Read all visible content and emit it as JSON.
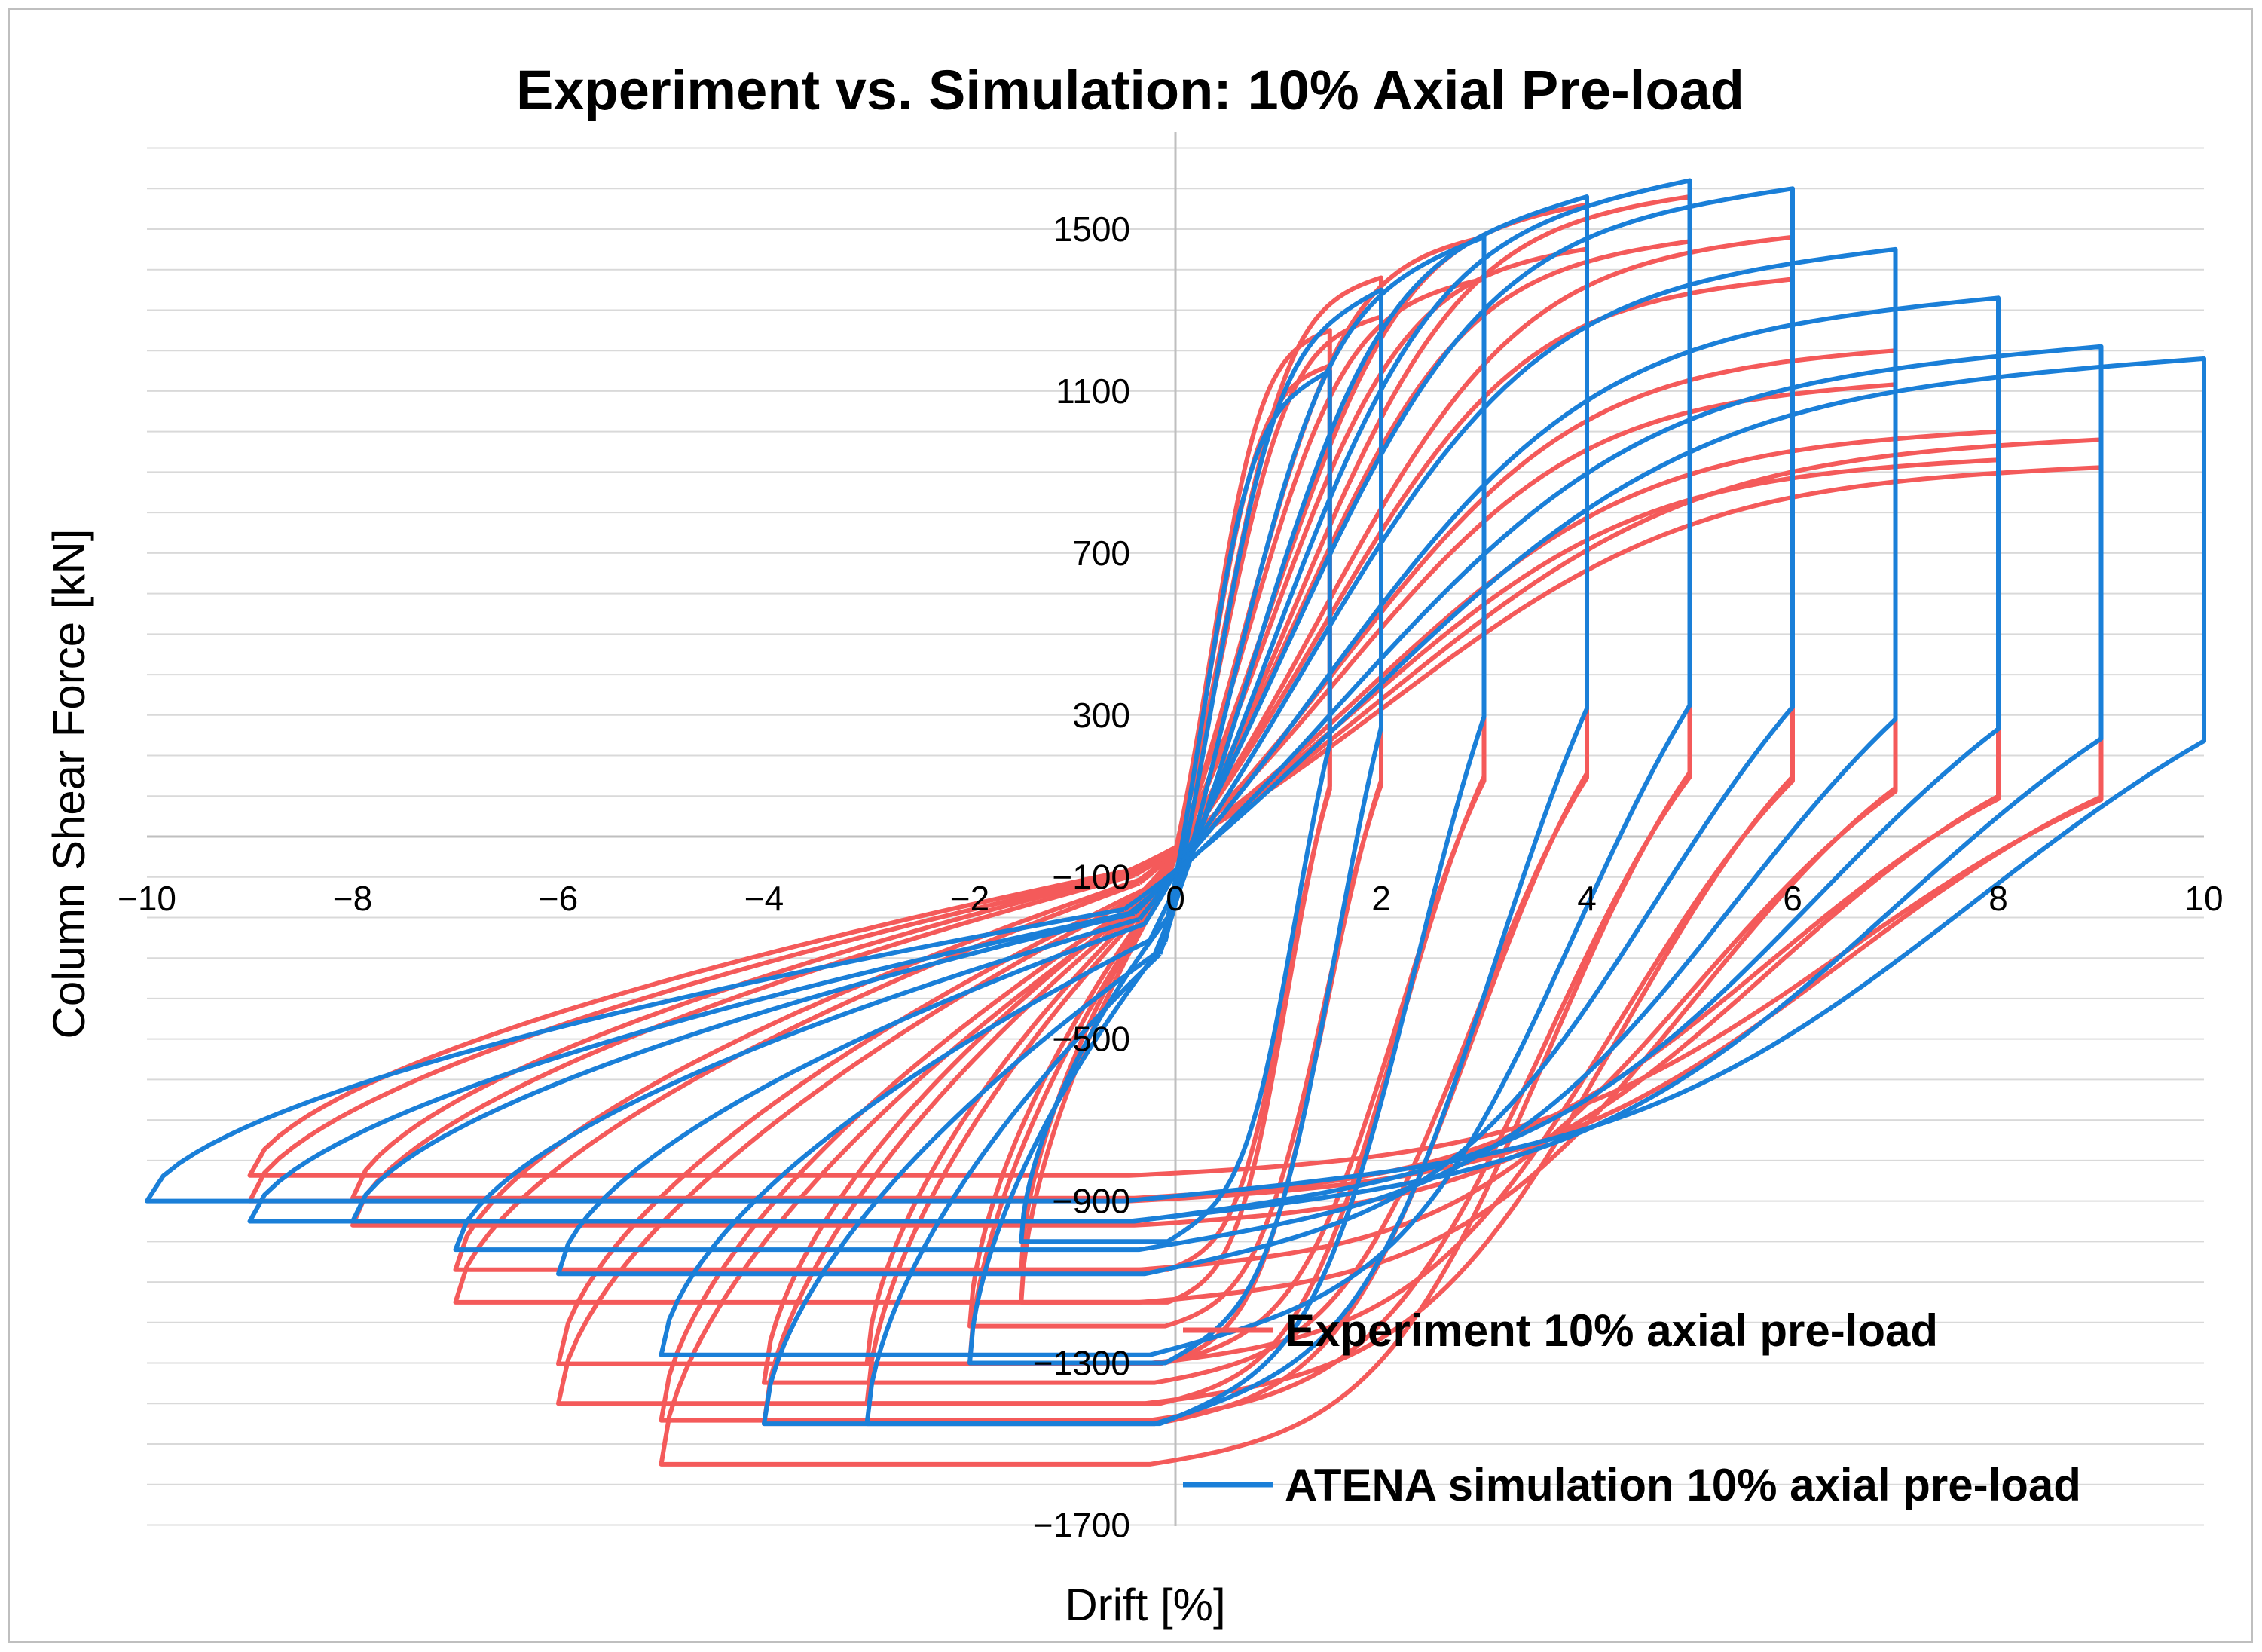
{
  "chart_data": {
    "type": "line",
    "title": "Experiment vs. Simulation: 10% Axial Pre-load",
    "xlabel": "Drift [%]",
    "ylabel": "Column Shear Force [kN]",
    "xlim": [
      -10,
      10
    ],
    "ylim": [
      -1700,
      1700
    ],
    "x_ticks": [
      -10,
      -8,
      -6,
      -4,
      -2,
      0,
      2,
      4,
      6,
      8,
      10
    ],
    "y_ticks": [
      1500,
      1100,
      700,
      300,
      -100,
      -500,
      -900,
      -1300,
      -1700
    ],
    "grid": true,
    "legend_position": "bottom-right",
    "series": [
      {
        "name": "Experiment 10% axial pre-load",
        "color": "#f45a5a",
        "cycles": [
          {
            "drift": 1.5,
            "pos_peak": 1250,
            "neg_peak": -1150
          },
          {
            "drift": 2,
            "pos_peak": 1380,
            "neg_peak": -1300
          },
          {
            "drift": 3,
            "pos_peak": 1480,
            "neg_peak": -1400
          },
          {
            "drift": 4,
            "pos_peak": 1560,
            "neg_peak": -1450
          },
          {
            "drift": 5,
            "pos_peak": 1580,
            "neg_peak": -1550
          },
          {
            "drift": 6,
            "pos_peak": 1480,
            "neg_peak": -1400
          },
          {
            "drift": 7,
            "pos_peak": 1200,
            "neg_peak": -1150
          },
          {
            "drift": 8,
            "pos_peak": 1000,
            "neg_peak": -960
          },
          {
            "drift": 9,
            "pos_peak": 980,
            "neg_peak": -900
          }
        ]
      },
      {
        "name": "ATENA simulation 10% axial pre-load",
        "color": "#1a7fd8",
        "cycles": [
          {
            "drift": 1.5,
            "pos_peak": 1150,
            "neg_peak": -1000
          },
          {
            "drift": 2,
            "pos_peak": 1350,
            "neg_peak": -1300
          },
          {
            "drift": 3,
            "pos_peak": 1480,
            "neg_peak": -1450
          },
          {
            "drift": 4,
            "pos_peak": 1580,
            "neg_peak": -1450
          },
          {
            "drift": 5,
            "pos_peak": 1620,
            "neg_peak": -1280
          },
          {
            "drift": 6,
            "pos_peak": 1600,
            "neg_peak": -1080
          },
          {
            "drift": 7,
            "pos_peak": 1450,
            "neg_peak": -1020
          },
          {
            "drift": 8,
            "pos_peak": 1330,
            "neg_peak": -950
          },
          {
            "drift": 9,
            "pos_peak": 1210,
            "neg_peak": -950
          },
          {
            "drift": 10,
            "pos_peak": 1180,
            "neg_peak": -900
          }
        ]
      }
    ]
  }
}
